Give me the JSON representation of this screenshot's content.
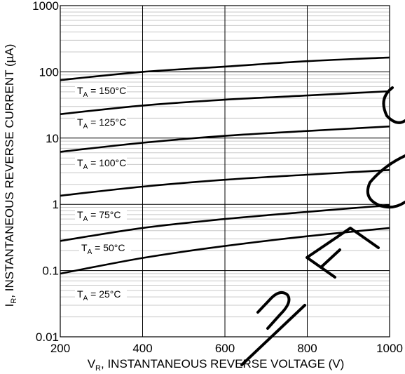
{
  "chart_data": {
    "type": "line",
    "title": "",
    "xlabel": "V",
    "xlabel_sub": "R",
    "xlabel_rest": ", INSTANTANEOUS REVERSE VOLTAGE (V)",
    "ylabel": "I",
    "ylabel_sub": "R",
    "ylabel_rest": ", INSTANTANEOUS REVERSE CURRENT (µA)",
    "xlim": [
      200,
      1000
    ],
    "ylim": [
      0.01,
      1000
    ],
    "yscale": "log",
    "grid": true,
    "x_ticks": [
      "200",
      "400",
      "600",
      "800",
      "1000"
    ],
    "y_ticks": [
      "0.01",
      "0.1",
      "1",
      "10",
      "100",
      "1000"
    ],
    "watermark": "RECOMMENDED",
    "series": [
      {
        "name": "T = 150°C",
        "label_main": "T",
        "label_sub": "A",
        "label_rest": " = 150°C",
        "x": [
          200,
          400,
          600,
          800,
          1000
        ],
        "y": [
          75,
          100,
          120,
          145,
          165
        ]
      },
      {
        "name": "T = 125°C",
        "label_main": "T",
        "label_sub": "A",
        "label_rest": " = 125°C",
        "x": [
          200,
          400,
          600,
          800,
          1000
        ],
        "y": [
          23,
          31,
          38,
          44,
          51
        ]
      },
      {
        "name": "T = 100°C",
        "label_main": "T",
        "label_sub": "A",
        "label_rest": " = 100°C",
        "x": [
          200,
          400,
          600,
          800,
          1000
        ],
        "y": [
          6.2,
          8.5,
          10.8,
          12.8,
          15
        ]
      },
      {
        "name": "T = 75°C",
        "label_main": "T",
        "label_sub": "A",
        "label_rest": " = 75°C",
        "x": [
          200,
          400,
          600,
          800,
          1000
        ],
        "y": [
          1.35,
          1.85,
          2.35,
          2.8,
          3.3
        ]
      },
      {
        "name": "T = 50°C",
        "label_main": "T",
        "label_sub": "A",
        "label_rest": " = 50°C",
        "x": [
          200,
          400,
          600,
          800,
          1000
        ],
        "y": [
          0.28,
          0.44,
          0.6,
          0.77,
          0.97
        ]
      },
      {
        "name": "T = 25°C",
        "label_main": "T",
        "label_sub": "A",
        "label_rest": " = 25°C",
        "x": [
          200,
          400,
          600,
          800,
          1000
        ],
        "y": [
          0.09,
          0.155,
          0.235,
          0.33,
          0.44
        ]
      }
    ]
  }
}
